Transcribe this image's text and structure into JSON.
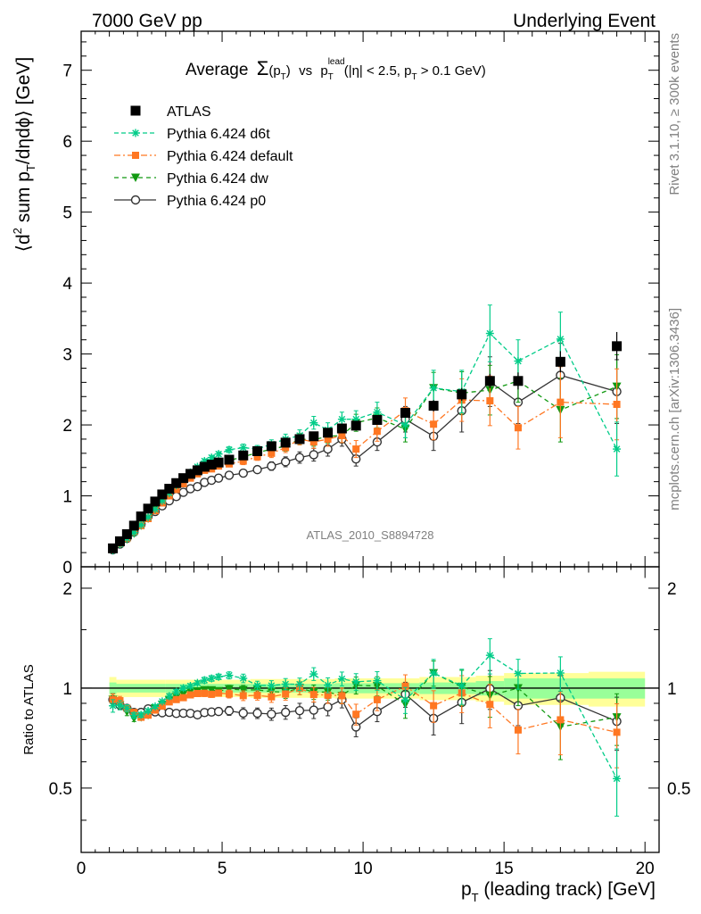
{
  "header": {
    "left": "7000 GeV pp",
    "right": "Underlying Event"
  },
  "side_labels": {
    "rivet": "Rivet 3.1.10, ≥ 300k events",
    "mcplots": "mcplots.cern.ch [arXiv:1306.3436]"
  },
  "analysis_id": "ATLAS_2010_S8894728",
  "chart_data": {
    "type": "scatter",
    "title": "Average Σ(pT) vs pT lead (|η| < 2.5, pT > 0.1 GeV)",
    "title_parts": {
      "average": "Average",
      "sigma": "Σ",
      "pt_open": "(p",
      "pt_sub": "T",
      "pt_close": ")",
      "vs": "vs",
      "p": "p",
      "lead_sup": "lead",
      "t_sub": "T",
      "cut_open": "(|η| < 2.5, p",
      "cut_sub": "T",
      "cut_close": " > 0.1 GeV)"
    },
    "ylabel_parts": {
      "a": "⟨d",
      "sup2": "2",
      "b": " sum p",
      "subT": "T",
      "c": "/dηdϕ⟩ [GeV]"
    },
    "xlabel_parts": {
      "p": "p",
      "sub": "T",
      "rest": " (leading track) [GeV]"
    },
    "ratio_ylabel": "Ratio to ATLAS",
    "xlim": [
      0,
      20.5
    ],
    "ylim": [
      0,
      7.55
    ],
    "ratio_ylim": [
      0.32,
      2.32
    ],
    "ratio_log": true,
    "x_ticks": [
      "0",
      "5",
      "10",
      "15",
      "20"
    ],
    "y_ticks": [
      "0",
      "1",
      "2",
      "3",
      "4",
      "5",
      "6",
      "7"
    ],
    "ratio_ticks": [
      "0.5",
      "1",
      "2"
    ],
    "legend_position": "top-left",
    "colors": {
      "atlas": "#000000",
      "d6t": "#00cc88",
      "default": "#ff7722",
      "dw": "#119911",
      "p0": "#333333",
      "band_inner": "#99ff99",
      "band_outer": "#ffff99"
    },
    "atlas_band": [
      {
        "x0": 1.0,
        "x1": 1.25,
        "inner": 0.04,
        "outer": 0.08
      },
      {
        "x0": 1.25,
        "x1": 3.0,
        "inner": 0.03,
        "outer": 0.06
      },
      {
        "x0": 3.0,
        "x1": 6.0,
        "inner": 0.03,
        "outer": 0.06
      },
      {
        "x0": 6.0,
        "x1": 9.0,
        "inner": 0.03,
        "outer": 0.065
      },
      {
        "x0": 9.0,
        "x1": 12.0,
        "inner": 0.035,
        "outer": 0.07
      },
      {
        "x0": 12.0,
        "x1": 14.0,
        "inner": 0.04,
        "outer": 0.08
      },
      {
        "x0": 14.0,
        "x1": 15.0,
        "inner": 0.05,
        "outer": 0.09
      },
      {
        "x0": 15.0,
        "x1": 18.0,
        "inner": 0.07,
        "outer": 0.11
      },
      {
        "x0": 18.0,
        "x1": 20.0,
        "inner": 0.07,
        "outer": 0.12
      }
    ],
    "x": [
      1.125,
      1.375,
      1.625,
      1.875,
      2.125,
      2.375,
      2.625,
      2.875,
      3.125,
      3.375,
      3.625,
      3.875,
      4.125,
      4.375,
      4.625,
      4.875,
      5.25,
      5.75,
      6.25,
      6.75,
      7.25,
      7.75,
      8.25,
      8.75,
      9.25,
      9.75,
      10.5,
      11.5,
      12.5,
      13.5,
      14.5,
      15.5,
      17.0,
      19.0
    ],
    "series": [
      {
        "name": "ATLAS",
        "key": "atlas",
        "marker": "square",
        "values": [
          0.26,
          0.36,
          0.46,
          0.58,
          0.71,
          0.82,
          0.92,
          1.02,
          1.1,
          1.18,
          1.25,
          1.31,
          1.36,
          1.41,
          1.44,
          1.47,
          1.51,
          1.57,
          1.63,
          1.7,
          1.75,
          1.8,
          1.84,
          1.89,
          1.95,
          1.99,
          2.07,
          2.17,
          2.27,
          2.43,
          2.62,
          2.62,
          2.89,
          3.11
        ],
        "errors": [
          0.01,
          0.01,
          0.01,
          0.01,
          0.01,
          0.01,
          0.01,
          0.01,
          0.02,
          0.02,
          0.02,
          0.02,
          0.02,
          0.02,
          0.02,
          0.02,
          0.03,
          0.03,
          0.03,
          0.03,
          0.04,
          0.04,
          0.04,
          0.05,
          0.05,
          0.05,
          0.06,
          0.07,
          0.08,
          0.09,
          0.1,
          0.12,
          0.15,
          0.2
        ]
      },
      {
        "name": "Pythia 6.424 d6t",
        "key": "d6t",
        "marker": "star",
        "values": [
          0.23,
          0.32,
          0.4,
          0.48,
          0.59,
          0.7,
          0.81,
          0.93,
          1.04,
          1.15,
          1.25,
          1.33,
          1.41,
          1.49,
          1.54,
          1.59,
          1.65,
          1.68,
          1.66,
          1.73,
          1.8,
          1.85,
          2.03,
          1.93,
          2.08,
          2.08,
          2.18,
          2.0,
          2.52,
          2.47,
          3.29,
          2.9,
          3.21,
          1.66
        ],
        "errors": [
          0.01,
          0.01,
          0.01,
          0.01,
          0.01,
          0.01,
          0.01,
          0.01,
          0.02,
          0.02,
          0.02,
          0.02,
          0.02,
          0.03,
          0.03,
          0.03,
          0.04,
          0.05,
          0.05,
          0.06,
          0.07,
          0.08,
          0.09,
          0.1,
          0.1,
          0.12,
          0.14,
          0.18,
          0.25,
          0.3,
          0.4,
          0.3,
          0.38,
          0.38
        ]
      },
      {
        "name": "Pythia 6.424 default",
        "key": "default",
        "marker": "square-small",
        "values": [
          0.24,
          0.33,
          0.4,
          0.49,
          0.58,
          0.68,
          0.79,
          0.9,
          1.0,
          1.09,
          1.17,
          1.25,
          1.31,
          1.36,
          1.38,
          1.42,
          1.45,
          1.49,
          1.55,
          1.6,
          1.68,
          1.8,
          1.76,
          1.8,
          1.85,
          1.66,
          1.91,
          2.2,
          2.01,
          2.35,
          2.34,
          1.96,
          2.32,
          2.29
        ],
        "errors": [
          0.01,
          0.01,
          0.01,
          0.01,
          0.01,
          0.01,
          0.01,
          0.01,
          0.02,
          0.02,
          0.02,
          0.02,
          0.02,
          0.03,
          0.03,
          0.03,
          0.04,
          0.05,
          0.05,
          0.06,
          0.07,
          0.08,
          0.09,
          0.1,
          0.1,
          0.12,
          0.14,
          0.18,
          0.22,
          0.3,
          0.35,
          0.3,
          0.5,
          0.5
        ]
      },
      {
        "name": "Pythia 6.424 dw",
        "key": "dw",
        "marker": "triangle-down",
        "values": [
          0.24,
          0.32,
          0.39,
          0.47,
          0.58,
          0.68,
          0.8,
          0.91,
          1.01,
          1.11,
          1.2,
          1.28,
          1.33,
          1.39,
          1.42,
          1.44,
          1.5,
          1.55,
          1.61,
          1.66,
          1.7,
          1.8,
          1.79,
          1.84,
          1.85,
          2.03,
          2.1,
          1.94,
          2.52,
          2.45,
          2.49,
          2.62,
          2.21,
          2.54
        ],
        "errors": [
          0.01,
          0.01,
          0.01,
          0.01,
          0.01,
          0.01,
          0.01,
          0.01,
          0.02,
          0.02,
          0.02,
          0.02,
          0.02,
          0.03,
          0.03,
          0.03,
          0.04,
          0.05,
          0.05,
          0.06,
          0.07,
          0.08,
          0.09,
          0.1,
          0.1,
          0.12,
          0.14,
          0.18,
          0.22,
          0.3,
          0.35,
          0.3,
          0.45,
          0.45
        ]
      },
      {
        "name": "Pythia 6.424 p0",
        "key": "p0",
        "marker": "circle-open",
        "values": [
          0.24,
          0.32,
          0.4,
          0.49,
          0.6,
          0.71,
          0.78,
          0.86,
          0.93,
          0.99,
          1.05,
          1.1,
          1.13,
          1.19,
          1.22,
          1.25,
          1.29,
          1.32,
          1.37,
          1.42,
          1.48,
          1.54,
          1.58,
          1.66,
          1.8,
          1.52,
          1.76,
          2.08,
          1.84,
          2.2,
          2.61,
          2.32,
          2.7,
          2.47
        ],
        "errors": [
          0.01,
          0.01,
          0.01,
          0.01,
          0.01,
          0.01,
          0.01,
          0.01,
          0.02,
          0.02,
          0.02,
          0.02,
          0.02,
          0.03,
          0.03,
          0.03,
          0.04,
          0.05,
          0.05,
          0.06,
          0.07,
          0.08,
          0.09,
          0.1,
          0.1,
          0.1,
          0.12,
          0.18,
          0.2,
          0.3,
          0.35,
          0.3,
          0.45,
          0.45
        ]
      }
    ]
  }
}
